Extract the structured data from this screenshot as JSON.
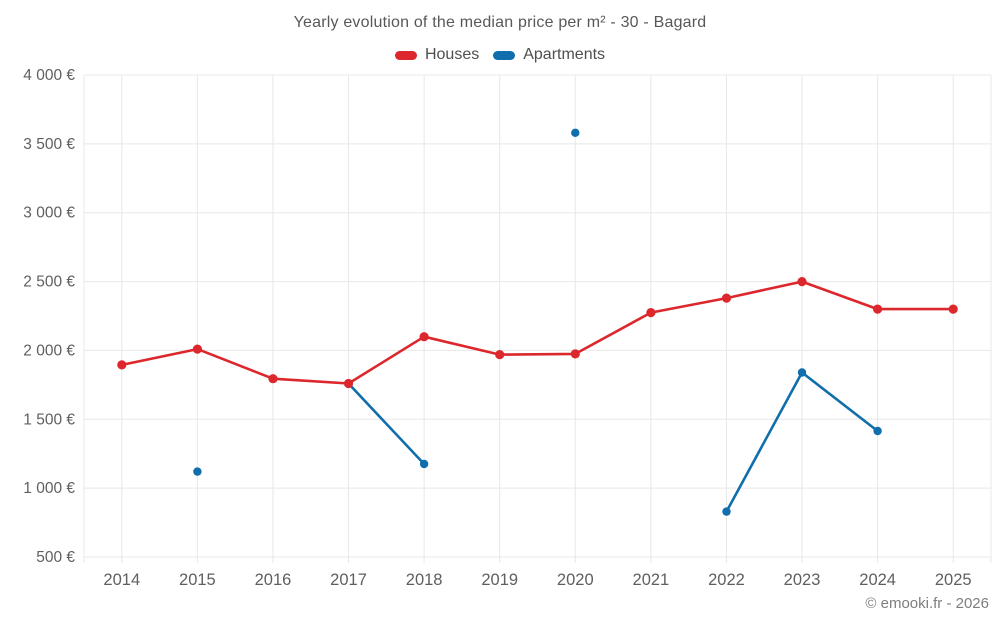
{
  "title": "Yearly evolution of the median price per m² - 30 - Bagard",
  "footer": "© emooki.fr - 2026",
  "legend": {
    "items": [
      {
        "id": "houses",
        "label": "Houses",
        "color": "#dc282d"
      },
      {
        "id": "apartments",
        "label": "Apartments",
        "color": "#0f6eab"
      }
    ]
  },
  "colors": {
    "houses": "#dc282d",
    "apartments": "#0f6eab",
    "grid": "#e8e8e8",
    "tick_text": "#5f5f61",
    "title_text": "#58585a",
    "footer_text": "#7e7e80"
  },
  "chart_data": {
    "type": "line",
    "title": "Yearly evolution of the median price per m² - 30 - Bagard",
    "x_categories": [
      "2014",
      "2015",
      "2016",
      "2017",
      "2018",
      "2019",
      "2020",
      "2021",
      "2022",
      "2023",
      "2024",
      "2025"
    ],
    "ylim": [
      500,
      4000
    ],
    "grid": true,
    "legend_position": "top",
    "yticks": [
      {
        "value": 500,
        "label": "500 €"
      },
      {
        "value": 1000,
        "label": "1 000 €"
      },
      {
        "value": 1500,
        "label": "1 500 €"
      },
      {
        "value": 2000,
        "label": "2 000 €"
      },
      {
        "value": 2500,
        "label": "2 500 €"
      },
      {
        "value": 3000,
        "label": "3 000 €"
      },
      {
        "value": 3500,
        "label": "3 500 €"
      },
      {
        "value": 4000,
        "label": "4 000 €"
      }
    ],
    "series": [
      {
        "name": "Apartments",
        "color": "#0f6eab",
        "values": [
          null,
          1120,
          null,
          1760,
          1175,
          null,
          3580,
          null,
          830,
          1840,
          1415,
          null
        ]
      },
      {
        "name": "Houses",
        "color": "#dc282d",
        "values": [
          1895,
          2010,
          1795,
          1760,
          2100,
          1970,
          1975,
          2275,
          2380,
          2500,
          2300,
          2300
        ]
      }
    ]
  }
}
